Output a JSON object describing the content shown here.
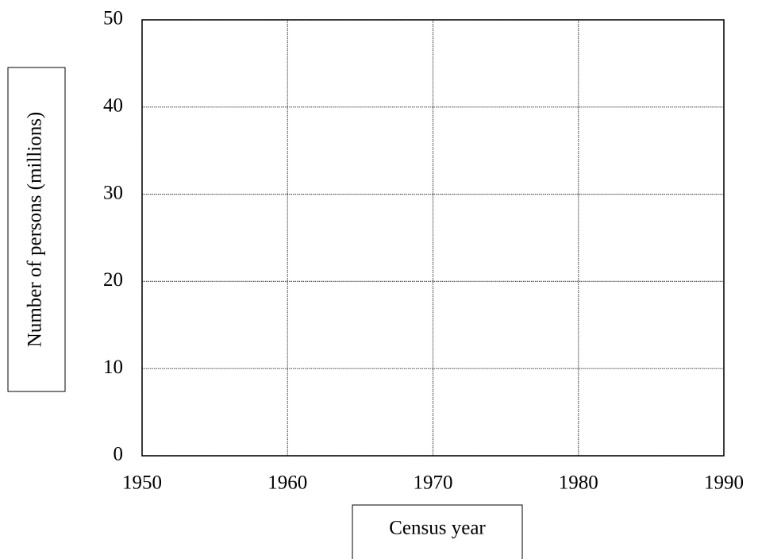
{
  "chart_data": {
    "type": "line",
    "xlabel": "Census year",
    "ylabel": "Number of persons (millions)",
    "xlim": [
      1950,
      1990
    ],
    "xticks": [
      1950,
      1960,
      1970,
      1980,
      1990
    ],
    "ylim": [
      0,
      50
    ],
    "yticks": [
      0,
      10,
      20,
      30,
      40,
      50
    ],
    "grid": true
  }
}
